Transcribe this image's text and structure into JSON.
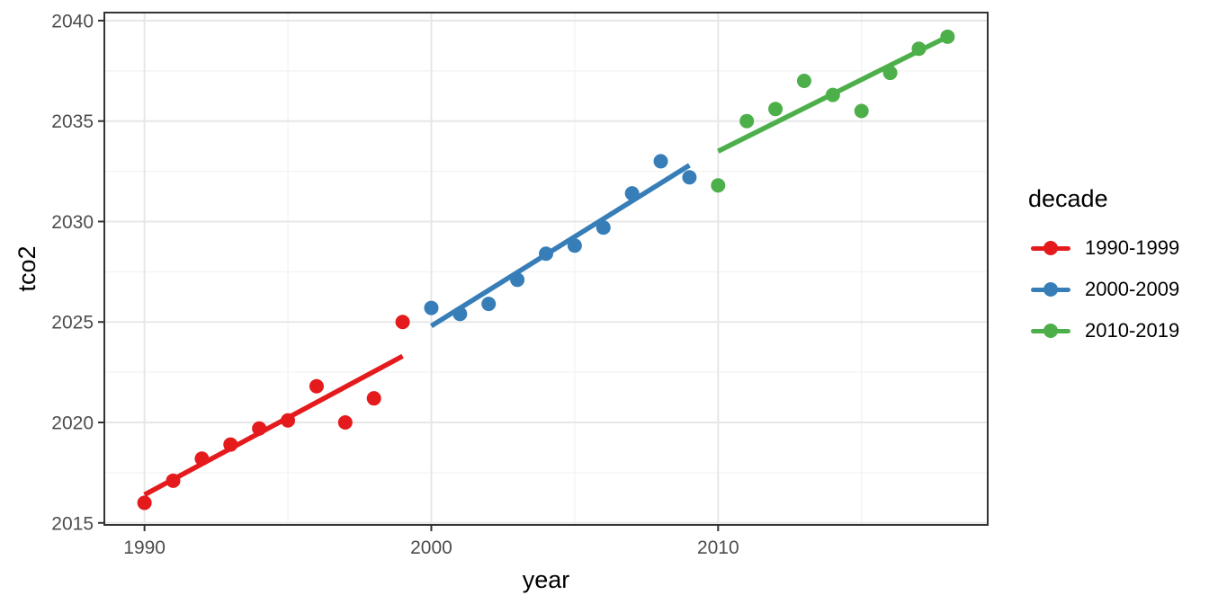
{
  "figure": {
    "background": "#FFFFFF"
  },
  "legend": {
    "title": "decade",
    "entries": [
      {
        "label": "1990-1999",
        "color": "#E41A1C"
      },
      {
        "label": "2000-2009",
        "color": "#377EB8"
      },
      {
        "label": "2010-2019",
        "color": "#4DAF4A"
      }
    ]
  },
  "style": {
    "panel_border_color": "#333333",
    "grid_major_color": "#E7E7E7",
    "grid_minor_color": "#F3F3F3",
    "tick_color": "#333333",
    "tick_label_color": "#4D4D4D",
    "axis_title_color": "#000000"
  },
  "chart_data": {
    "type": "scatter",
    "title": "",
    "xlabel": "year",
    "ylabel": "tco2",
    "grid": true,
    "legend_position": "right",
    "xlim": [
      1988.6,
      2019.4
    ],
    "ylim": [
      2014.9,
      2040.4
    ],
    "x_ticks": [
      1990,
      2000,
      2010
    ],
    "x_minor_ticks": [
      1995,
      2005,
      2015
    ],
    "y_ticks": [
      2015,
      2020,
      2025,
      2030,
      2035,
      2040
    ],
    "y_minor_ticks": [
      2017.5,
      2022.5,
      2027.5,
      2032.5,
      2037.5
    ],
    "series": [
      {
        "name": "1990-1999",
        "color": "#E41A1C",
        "x": [
          1990,
          1991,
          1992,
          1993,
          1994,
          1995,
          1996,
          1997,
          1998,
          1999
        ],
        "y": [
          2016.0,
          2017.1,
          2018.2,
          2018.9,
          2019.7,
          2020.1,
          2021.8,
          2020.0,
          2021.2,
          2025.0
        ],
        "trend": {
          "x1": 1990,
          "y1": 2016.4,
          "x2": 1999,
          "y2": 2023.3
        }
      },
      {
        "name": "2000-2009",
        "color": "#377EB8",
        "x": [
          2000,
          2001,
          2002,
          2003,
          2004,
          2005,
          2006,
          2007,
          2008,
          2009
        ],
        "y": [
          2025.7,
          2025.4,
          2025.9,
          2027.1,
          2028.4,
          2028.8,
          2029.7,
          2031.4,
          2033.0,
          2032.2
        ],
        "trend": {
          "x1": 2000,
          "y1": 2024.8,
          "x2": 2009,
          "y2": 2032.8
        }
      },
      {
        "name": "2010-2019",
        "color": "#4DAF4A",
        "x": [
          2010,
          2011,
          2012,
          2013,
          2014,
          2015,
          2016,
          2017,
          2018
        ],
        "y": [
          2031.8,
          2035.0,
          2035.6,
          2037.0,
          2036.3,
          2035.5,
          2037.4,
          2038.6,
          2039.2
        ],
        "trend": {
          "x1": 2010,
          "y1": 2033.5,
          "x2": 2018,
          "y2": 2039.2
        }
      }
    ]
  }
}
